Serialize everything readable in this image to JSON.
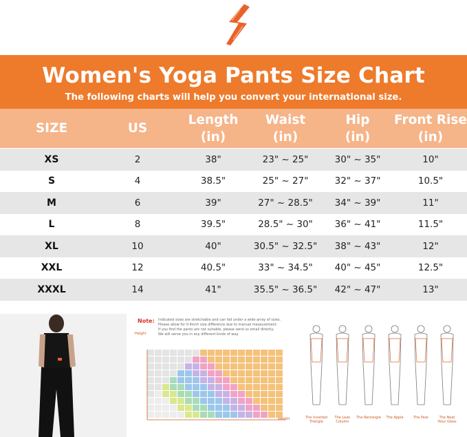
{
  "title": "Women's Yoga Pants Size Chart",
  "subtitle": "The following charts will help you convert your international size.",
  "headers": {
    "size": "SIZE",
    "us": "US",
    "length": [
      "Length",
      "(in)"
    ],
    "waist": [
      "Waist",
      "(in)"
    ],
    "hip": [
      "Hip",
      "(in)"
    ],
    "front_rise": [
      "Front Rise",
      "(in)"
    ]
  },
  "rows": [
    {
      "size": "XS",
      "us": "2",
      "length": "38\"",
      "waist": "23\" ~ 25\"",
      "hip": "30\" ~ 35\"",
      "front_rise": "10\""
    },
    {
      "size": "S",
      "us": "4",
      "length": "38.5\"",
      "waist": "25\" ~ 27\"",
      "hip": "32\" ~ 37\"",
      "front_rise": "10.5\""
    },
    {
      "size": "M",
      "us": "6",
      "length": "39\"",
      "waist": "27\" ~ 28.5\"",
      "hip": "34\" ~ 39\"",
      "front_rise": "11\""
    },
    {
      "size": "L",
      "us": "8",
      "length": "39.5\"",
      "waist": "28.5\" ~ 30\"",
      "hip": "36\" ~ 41\"",
      "front_rise": "11.5\""
    },
    {
      "size": "XL",
      "us": "10",
      "length": "40\"",
      "waist": "30.5\" ~ 32.5\"",
      "hip": "38\" ~ 43\"",
      "front_rise": "12\""
    },
    {
      "size": "XXL",
      "us": "12",
      "length": "40.5\"",
      "waist": "33\" ~ 34.5\"",
      "hip": "40\" ~ 45\"",
      "front_rise": "12.5\""
    },
    {
      "size": "XXXL",
      "us": "14",
      "length": "41\"",
      "waist": "35.5\" ~ 36.5\"",
      "hip": "42\" ~ 47\"",
      "front_rise": "13\""
    }
  ],
  "note": {
    "label": "Note:",
    "lines": [
      "Indicated sizes are stretchable and can fall under a wide array of sizes.",
      "Please allow for 0.4inch size difference due to manual measurement.",
      "If you find the pants are not suitable, please send us email directly.",
      "We will serve you in any different kinds of way."
    ],
    "height_label": "Height",
    "weight_label": "Weight"
  },
  "body_shapes": [
    "The Inverted Triangle",
    "The Lean Column",
    "The Rectangle",
    "The Apple",
    "The Pear",
    "The Neat Hour Glass"
  ],
  "colors": {
    "banner": "#ee7a2b",
    "header": "#f6b489",
    "shade_row": "#e6e6e6"
  }
}
